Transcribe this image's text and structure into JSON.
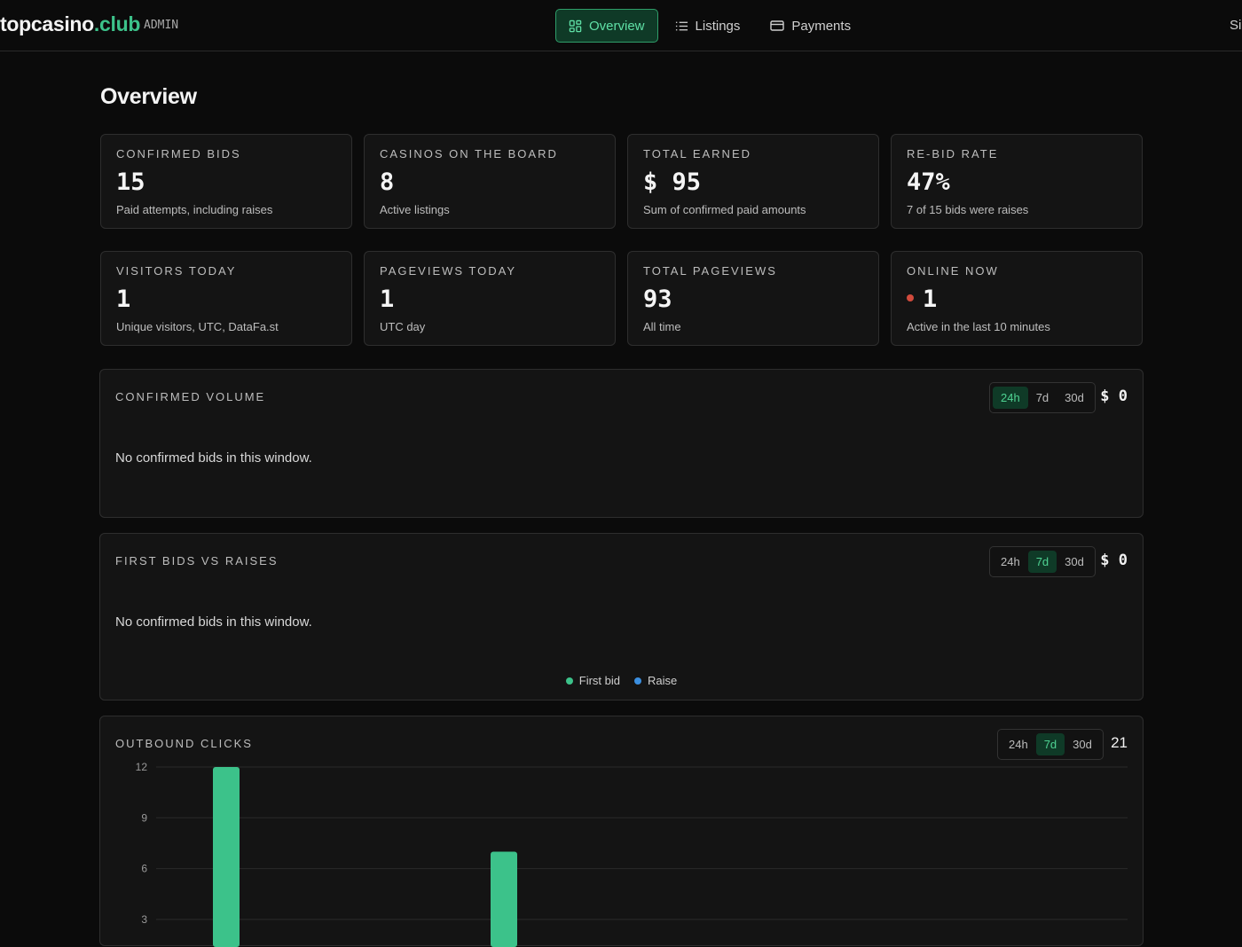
{
  "header": {
    "brand_name": "topcasino",
    "brand_tld": ".club",
    "admin_label": "ADMIN",
    "nav": [
      {
        "label": "Overview",
        "icon": "grid-icon",
        "active": true
      },
      {
        "label": "Listings",
        "icon": "list-icon",
        "active": false
      },
      {
        "label": "Payments",
        "icon": "card-icon",
        "active": false
      }
    ],
    "signout_label": "Si"
  },
  "page_title": "Overview",
  "stats": [
    {
      "label": "CONFIRMED BIDS",
      "value": "15",
      "sub": "Paid attempts, including raises"
    },
    {
      "label": "CASINOS ON THE BOARD",
      "value": "8",
      "sub": "Active listings"
    },
    {
      "label": "TOTAL EARNED",
      "value": "$ 95",
      "sub": "Sum of confirmed paid amounts"
    },
    {
      "label": "RE-BID RATE",
      "value": "47%",
      "sub": "7 of 15 bids were raises"
    },
    {
      "label": "VISITORS TODAY",
      "value": "1",
      "sub": "Unique visitors, UTC, DataFa.st"
    },
    {
      "label": "PAGEVIEWS TODAY",
      "value": "1",
      "sub": "UTC day"
    },
    {
      "label": "TOTAL PAGEVIEWS",
      "value": "93",
      "sub": "All time"
    },
    {
      "label": "ONLINE NOW",
      "value": "1",
      "sub": "Active in the last 10 minutes"
    }
  ],
  "panels": {
    "confirmed_volume": {
      "label": "CONFIRMED VOLUME",
      "ranges": [
        "24h",
        "7d",
        "30d"
      ],
      "selected": "24h",
      "total": "$ 0",
      "empty_text": "No confirmed bids in this window."
    },
    "first_vs_raises": {
      "label": "FIRST BIDS VS RAISES",
      "ranges": [
        "24h",
        "7d",
        "30d"
      ],
      "selected": "7d",
      "total": "$ 0",
      "empty_text": "No confirmed bids in this window.",
      "legend": [
        {
          "name": "First bid",
          "color": "#3cc28a"
        },
        {
          "name": "Raise",
          "color": "#3b8fe0"
        }
      ]
    },
    "outbound_clicks": {
      "label": "OUTBOUND CLICKS",
      "ranges": [
        "24h",
        "7d",
        "30d"
      ],
      "selected": "7d",
      "total": "21"
    }
  },
  "colors": {
    "accent": "#3cc28a",
    "live_dot": "#d24b3d"
  },
  "chart_data": {
    "type": "bar",
    "title": "OUTBOUND CLICKS",
    "yticks": [
      12,
      9,
      6,
      3
    ],
    "ylim": [
      0,
      12
    ],
    "values": [
      12,
      7
    ],
    "color": "#3cc28a",
    "grid": true
  }
}
